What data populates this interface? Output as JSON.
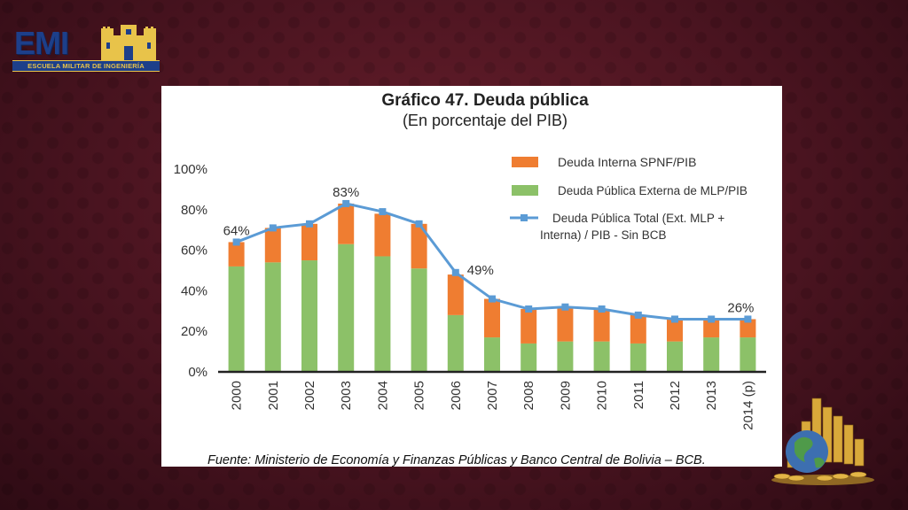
{
  "logo": {
    "name": "EMI",
    "band": "ESCUELA MILITAR DE INGENIERÍA"
  },
  "chart_data": {
    "type": "bar",
    "stacked": true,
    "title": "Gráfico 47. Deuda pública",
    "subtitle": "(En porcentaje del PIB)",
    "categories": [
      "2000",
      "2001",
      "2002",
      "2003",
      "2004",
      "2005",
      "2006",
      "2007",
      "2008",
      "2009",
      "2010",
      "2011",
      "2012",
      "2013",
      "2014 (p)"
    ],
    "ylim": [
      0,
      100
    ],
    "yticks": [
      "0%",
      "20%",
      "40%",
      "60%",
      "80%",
      "100%"
    ],
    "series": [
      {
        "name": "Deuda Pública Externa de MLP/PIB",
        "kind": "bar",
        "color": "#8cc168",
        "values": [
          52,
          54,
          55,
          63,
          57,
          51,
          28,
          17,
          14,
          15,
          15,
          14,
          15,
          17,
          17
        ]
      },
      {
        "name": "Deuda Interna SPNF/PIB",
        "kind": "bar",
        "color": "#ef7d31",
        "values": [
          12,
          17,
          18,
          20,
          21,
          22,
          20,
          19,
          17,
          17,
          16,
          14,
          11,
          9,
          9
        ]
      },
      {
        "name": "Deuda Pública Total (Ext. MLP + Interna) / PIB  - Sin BCB",
        "kind": "line",
        "color": "#5b9bd5",
        "values": [
          64,
          71,
          73,
          83,
          79,
          73,
          49,
          36,
          31,
          32,
          31,
          28,
          26,
          26,
          26
        ]
      }
    ],
    "data_labels": [
      {
        "index": 0,
        "text": "64%"
      },
      {
        "index": 3,
        "text": "83%"
      },
      {
        "index": 6,
        "text": "49%"
      },
      {
        "index": 14,
        "text": "26%"
      }
    ],
    "legend_position": "top-right",
    "source": "Fuente: Ministerio de Economía y Finanzas Públicas y Banco Central de Bolivia – BCB."
  }
}
